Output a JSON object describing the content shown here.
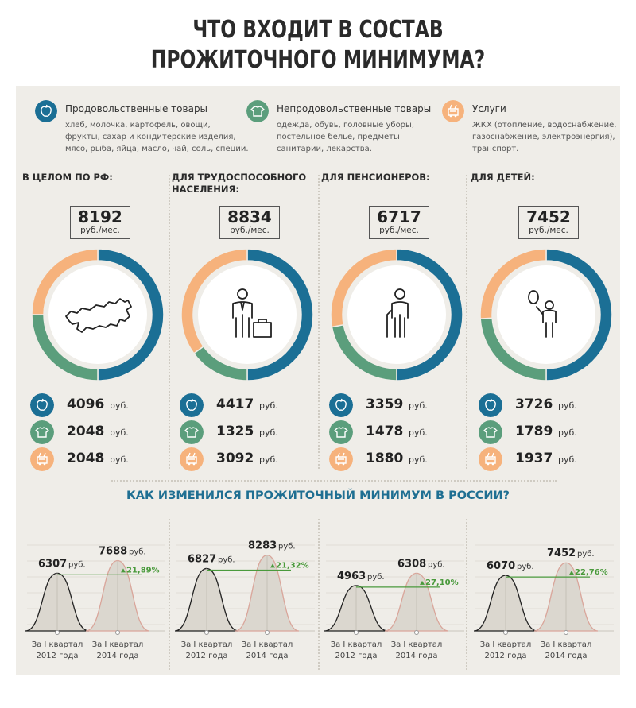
{
  "title": {
    "line1": "ЧТО ВХОДИТ В СОСТАВ",
    "line2": "ПРОЖИТОЧНОГО МИНИМУМА?"
  },
  "colors": {
    "food": "#1b6f95",
    "nonfood": "#5b9e7c",
    "services": "#f6b27c",
    "accent_green": "#4a9a3c",
    "subtitle": "#1f6f92"
  },
  "legend": [
    {
      "icon": "apple-icon",
      "title": "Продовольственные товары",
      "lines": [
        "хлеб, молочка, картофель, овощи,",
        "фрукты, сахар и кондитерские изделия,",
        "мясо, рыба, яйца, масло, чай, соль, специи."
      ]
    },
    {
      "icon": "shirt-icon",
      "title": "Непродовольственные товары",
      "lines": [
        "одежда, обувь, головные уборы,",
        "постельное белье, предметы",
        "санитарии,  лекарства."
      ]
    },
    {
      "icon": "trolleybus-icon",
      "title": "Услуги",
      "lines": [
        "ЖКХ (отопление, водоснабжение,",
        "газоснабжение, электроэнергия),",
        "транспорт."
      ]
    }
  ],
  "chart_data": [
    {
      "type": "pie",
      "categories_groups": [
        {
          "name": "В ЦЕЛОМ ПО РФ:",
          "label_lines": [
            "В ЦЕЛОМ ПО РФ:"
          ],
          "total": "8192",
          "unit": "руб./мес.",
          "icon": "russia-map-icon",
          "values": [
            4096,
            2048,
            2048
          ],
          "value_labels": [
            "4096",
            "2048",
            "2048"
          ]
        },
        {
          "name": "ДЛЯ ТРУДОСПОСОБНОГО НАСЕЛЕНИЯ:",
          "label_lines": [
            "ДЛЯ ТРУДОСПОСОБНОГО",
            "НАСЕЛЕНИЯ:"
          ],
          "total": "8834",
          "unit": "руб./мес.",
          "icon": "worker-icon",
          "values": [
            4417,
            1325,
            3092
          ],
          "value_labels": [
            "4417",
            "1325",
            "3092"
          ]
        },
        {
          "name": "ДЛЯ ПЕНСИОНЕРОВ:",
          "label_lines": [
            "ДЛЯ ПЕНСИОНЕРОВ:"
          ],
          "total": "6717",
          "unit": "руб./мес.",
          "icon": "pensioner-icon",
          "values": [
            3359,
            1478,
            1880
          ],
          "value_labels": [
            "3359",
            "1478",
            "1880"
          ]
        },
        {
          "name": "ДЛЯ ДЕТЕЙ:",
          "label_lines": [
            "ДЛЯ ДЕТЕЙ:"
          ],
          "total": "7452",
          "unit": "руб./мес.",
          "icon": "child-balloon-icon",
          "values": [
            3726,
            1789,
            1937
          ],
          "value_labels": [
            "3726",
            "1789",
            "1937"
          ]
        }
      ],
      "series_order": [
        "food",
        "nonfood",
        "services"
      ],
      "currency": "руб."
    },
    {
      "type": "area",
      "title": "КАК ИЗМЕНИЛСЯ ПРОЖИТОЧНЫЙ МИНИМУМ В РОССИИ?",
      "x_labels": [
        [
          "За I квартал",
          "2012 года"
        ],
        [
          "За I квартал",
          "2014 года"
        ]
      ],
      "currency": "руб.",
      "groups": [
        {
          "values": [
            6307,
            7688
          ],
          "value_labels": [
            "6307",
            "7688"
          ],
          "change": "21,89%"
        },
        {
          "values": [
            6827,
            8283
          ],
          "value_labels": [
            "6827",
            "8283"
          ],
          "change": "21,32%"
        },
        {
          "values": [
            4963,
            6308
          ],
          "value_labels": [
            "4963",
            "6308"
          ],
          "change": "27,10%"
        },
        {
          "values": [
            6070,
            7452
          ],
          "value_labels": [
            "6070",
            "7452"
          ],
          "change": "22,76%"
        }
      ]
    }
  ]
}
